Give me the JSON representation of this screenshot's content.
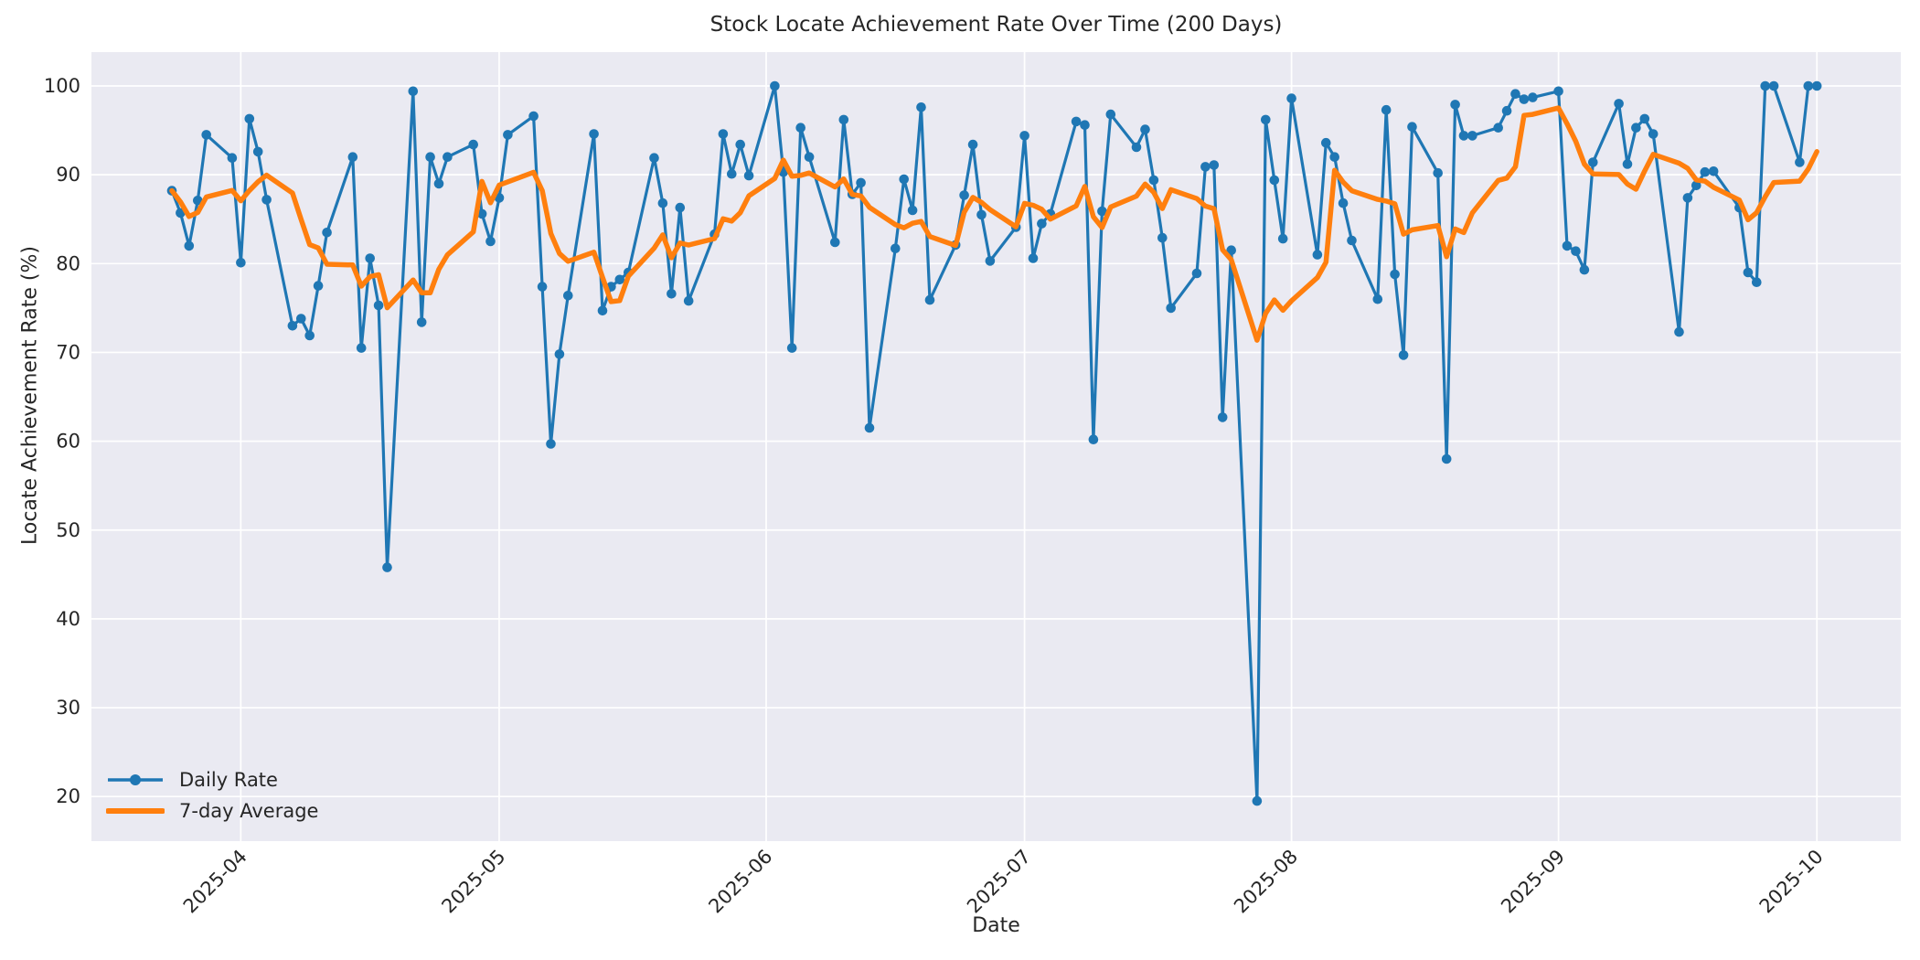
{
  "chart_data": {
    "type": "line",
    "title": "Stock Locate Achievement Rate Over Time (200 Days)",
    "xlabel": "Date",
    "ylabel": "Locate Achievement Rate (%)",
    "x_tick_labels": [
      "2025-04",
      "2025-05",
      "2025-06",
      "2025-07",
      "2025-08",
      "2025-09",
      "2025-10"
    ],
    "x_tick_dates": [
      "2025-04-01",
      "2025-05-01",
      "2025-06-01",
      "2025-07-01",
      "2025-08-01",
      "2025-09-01",
      "2025-10-01"
    ],
    "y_ticks": [
      20,
      30,
      40,
      50,
      60,
      70,
      80,
      90,
      100
    ],
    "ylim": [
      15,
      104
    ],
    "grid": true,
    "legend_position": "lower left",
    "rolling_window": 7,
    "dates": [
      "2025-03-24",
      "2025-03-25",
      "2025-03-26",
      "2025-03-27",
      "2025-03-28",
      "2025-03-31",
      "2025-04-01",
      "2025-04-02",
      "2025-04-03",
      "2025-04-04",
      "2025-04-07",
      "2025-04-08",
      "2025-04-09",
      "2025-04-10",
      "2025-04-11",
      "2025-04-14",
      "2025-04-15",
      "2025-04-16",
      "2025-04-17",
      "2025-04-18",
      "2025-04-21",
      "2025-04-22",
      "2025-04-23",
      "2025-04-24",
      "2025-04-25",
      "2025-04-28",
      "2025-04-29",
      "2025-04-30",
      "2025-05-01",
      "2025-05-02",
      "2025-05-05",
      "2025-05-06",
      "2025-05-07",
      "2025-05-08",
      "2025-05-09",
      "2025-05-12",
      "2025-05-13",
      "2025-05-14",
      "2025-05-15",
      "2025-05-16",
      "2025-05-19",
      "2025-05-20",
      "2025-05-21",
      "2025-05-22",
      "2025-05-23",
      "2025-05-26",
      "2025-05-27",
      "2025-05-28",
      "2025-05-29",
      "2025-05-30",
      "2025-06-02",
      "2025-06-03",
      "2025-06-04",
      "2025-06-05",
      "2025-06-06",
      "2025-06-09",
      "2025-06-10",
      "2025-06-11",
      "2025-06-12",
      "2025-06-13",
      "2025-06-16",
      "2025-06-17",
      "2025-06-18",
      "2025-06-19",
      "2025-06-20",
      "2025-06-23",
      "2025-06-24",
      "2025-06-25",
      "2025-06-26",
      "2025-06-27",
      "2025-06-30",
      "2025-07-01",
      "2025-07-02",
      "2025-07-03",
      "2025-07-04",
      "2025-07-07",
      "2025-07-08",
      "2025-07-09",
      "2025-07-10",
      "2025-07-11",
      "2025-07-14",
      "2025-07-15",
      "2025-07-16",
      "2025-07-17",
      "2025-07-18",
      "2025-07-21",
      "2025-07-22",
      "2025-07-23",
      "2025-07-24",
      "2025-07-25",
      "2025-07-28",
      "2025-07-29",
      "2025-07-30",
      "2025-07-31",
      "2025-08-01",
      "2025-08-04",
      "2025-08-05",
      "2025-08-06",
      "2025-08-07",
      "2025-08-08",
      "2025-08-11",
      "2025-08-12",
      "2025-08-13",
      "2025-08-14",
      "2025-08-15",
      "2025-08-18",
      "2025-08-19",
      "2025-08-20",
      "2025-08-21",
      "2025-08-22",
      "2025-08-25",
      "2025-08-26",
      "2025-08-27",
      "2025-08-28",
      "2025-08-29",
      "2025-09-01",
      "2025-09-02",
      "2025-09-03",
      "2025-09-04",
      "2025-09-05",
      "2025-09-08",
      "2025-09-09",
      "2025-09-10",
      "2025-09-11",
      "2025-09-12",
      "2025-09-15",
      "2025-09-16",
      "2025-09-17",
      "2025-09-18",
      "2025-09-19",
      "2025-09-22",
      "2025-09-23",
      "2025-09-24",
      "2025-09-25",
      "2025-09-26",
      "2025-09-29",
      "2025-09-30",
      "2025-10-01"
    ],
    "series": [
      {
        "name": "Daily Rate",
        "color": "#1f77b4",
        "style": "line+markers",
        "values": [
          88.2,
          85.7,
          82.0,
          87.1,
          94.5,
          91.9,
          80.1,
          96.3,
          92.6,
          87.2,
          73.0,
          73.8,
          71.9,
          77.5,
          83.5,
          92.0,
          70.5,
          80.6,
          75.3,
          45.8,
          99.4,
          73.4,
          92.0,
          89.0,
          92.0,
          93.4,
          85.6,
          82.5,
          87.4,
          94.5,
          96.6,
          77.4,
          59.7,
          69.8,
          76.4,
          94.6,
          74.7,
          77.4,
          78.2,
          79.0,
          91.9,
          86.8,
          76.6,
          86.3,
          75.8,
          83.3,
          94.6,
          90.1,
          93.4,
          89.9,
          100.0,
          90.3,
          70.5,
          95.3,
          92.0,
          82.4,
          96.2,
          87.8,
          89.1,
          61.5,
          81.7,
          89.5,
          86.0,
          97.6,
          75.9,
          82.1,
          87.7,
          93.4,
          85.5,
          80.3,
          84.1,
          94.4,
          80.6,
          84.5,
          85.6,
          96.0,
          95.6,
          60.2,
          85.9,
          96.8,
          93.1,
          95.1,
          89.4,
          82.9,
          75.0,
          78.9,
          90.9,
          91.1,
          62.7,
          81.5,
          19.5,
          96.2,
          89.4,
          82.8,
          98.6,
          81.0,
          93.6,
          92.0,
          86.8,
          82.6,
          76.0,
          97.3,
          78.8,
          69.7,
          95.4,
          90.2,
          58.0,
          97.9,
          94.4,
          94.4,
          95.3,
          97.2,
          99.1,
          98.5,
          98.7,
          99.4,
          82.0,
          81.4,
          79.3,
          91.4,
          98.0,
          91.2,
          95.3,
          96.3,
          94.6,
          72.3,
          87.4,
          88.8,
          90.3,
          90.4,
          86.3,
          79.0,
          77.9,
          100.0,
          100.0,
          91.4,
          100.0,
          100.0
        ]
      },
      {
        "name": "7-day Average",
        "color": "#ff7f0e",
        "style": "line",
        "derived": "rolling mean (window 7, min_periods 1) of Daily Rate"
      }
    ]
  },
  "colors": {
    "plot_background": "#eaeaf2",
    "grid": "#ffffff",
    "text": "#262626",
    "daily": "#1f77b4",
    "average": "#ff7f0e"
  }
}
